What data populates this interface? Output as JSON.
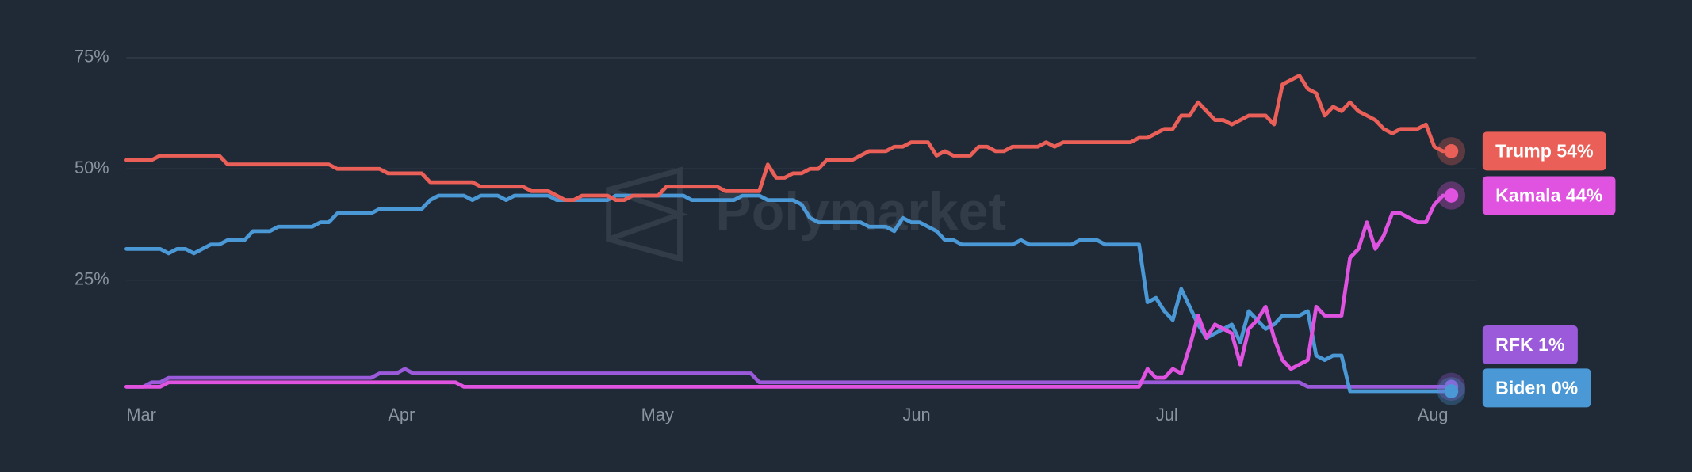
{
  "chart_data": {
    "type": "line",
    "watermark": "Polymarket",
    "categories": [
      "Mar",
      null,
      null,
      null,
      null,
      null,
      null,
      null,
      null,
      null,
      null,
      null,
      null,
      null,
      null,
      null,
      null,
      null,
      null,
      null,
      null,
      null,
      null,
      null,
      null,
      null,
      null,
      null,
      null,
      null,
      null,
      "Apr",
      null,
      null,
      null,
      null,
      null,
      null,
      null,
      null,
      null,
      null,
      null,
      null,
      null,
      null,
      null,
      null,
      null,
      null,
      null,
      null,
      null,
      null,
      null,
      null,
      null,
      null,
      null,
      null,
      null,
      "May",
      null,
      null,
      null,
      null,
      null,
      null,
      null,
      null,
      null,
      null,
      null,
      null,
      null,
      null,
      null,
      null,
      null,
      null,
      null,
      null,
      null,
      null,
      null,
      null,
      null,
      null,
      null,
      null,
      null,
      null,
      "Jun",
      null,
      null,
      null,
      null,
      null,
      null,
      null,
      null,
      null,
      null,
      null,
      null,
      null,
      null,
      null,
      null,
      null,
      null,
      null,
      null,
      null,
      null,
      null,
      null,
      null,
      null,
      null,
      null,
      null,
      "Jul",
      null,
      null,
      null,
      null,
      null,
      null,
      null,
      null,
      null,
      null,
      null,
      null,
      null,
      null,
      null,
      null,
      null,
      null,
      null,
      null,
      null,
      null,
      null,
      null,
      null,
      null,
      null,
      null,
      null,
      null,
      "Aug",
      null,
      null,
      null,
      null
    ],
    "ylim": [
      0,
      80
    ],
    "yticks": [
      {
        "value": 25,
        "label": "25%"
      },
      {
        "value": 50,
        "label": "50%"
      },
      {
        "value": 75,
        "label": "75%"
      }
    ],
    "grid": true,
    "series": [
      {
        "name": "Trump",
        "label": "Trump 54%",
        "color": "#ea5f57",
        "values": [
          52,
          52,
          52,
          52,
          53,
          53,
          53,
          53,
          53,
          53,
          53,
          53,
          51,
          51,
          51,
          51,
          51,
          51,
          51,
          51,
          51,
          51,
          51,
          51,
          51,
          50,
          50,
          50,
          50,
          50,
          50,
          49,
          49,
          49,
          49,
          49,
          47,
          47,
          47,
          47,
          47,
          47,
          46,
          46,
          46,
          46,
          46,
          46,
          45,
          45,
          45,
          44,
          43,
          43,
          44,
          44,
          44,
          44,
          43,
          43,
          44,
          44,
          44,
          44,
          46,
          46,
          46,
          46,
          46,
          46,
          46,
          45,
          45,
          45,
          45,
          45,
          51,
          48,
          48,
          49,
          49,
          50,
          50,
          52,
          52,
          52,
          52,
          53,
          54,
          54,
          54,
          55,
          55,
          56,
          56,
          56,
          53,
          54,
          53,
          53,
          53,
          55,
          55,
          54,
          54,
          55,
          55,
          55,
          55,
          56,
          55,
          56,
          56,
          56,
          56,
          56,
          56,
          56,
          56,
          56,
          57,
          57,
          58,
          59,
          59,
          62,
          62,
          65,
          63,
          61,
          61,
          60,
          61,
          62,
          62,
          62,
          60,
          69,
          70,
          71,
          68,
          67,
          62,
          64,
          63,
          65,
          63,
          62,
          61,
          59,
          58,
          59,
          59,
          59,
          60,
          55,
          54,
          54
        ]
      },
      {
        "name": "Kamala",
        "label": "Kamala 44%",
        "color": "#e052e0",
        "values": [
          1,
          1,
          1,
          1,
          1,
          2,
          2,
          2,
          2,
          2,
          2,
          2,
          2,
          2,
          2,
          2,
          2,
          2,
          2,
          2,
          2,
          2,
          2,
          2,
          2,
          2,
          2,
          2,
          2,
          2,
          2,
          2,
          2,
          2,
          2,
          2,
          2,
          2,
          2,
          2,
          1,
          1,
          1,
          1,
          1,
          1,
          1,
          1,
          1,
          1,
          1,
          1,
          1,
          1,
          1,
          1,
          1,
          1,
          1,
          1,
          1,
          1,
          1,
          1,
          1,
          1,
          1,
          1,
          1,
          1,
          1,
          1,
          1,
          1,
          1,
          1,
          1,
          1,
          1,
          1,
          1,
          1,
          1,
          1,
          1,
          1,
          1,
          1,
          1,
          1,
          1,
          1,
          1,
          1,
          1,
          1,
          1,
          1,
          1,
          1,
          1,
          1,
          1,
          1,
          1,
          1,
          1,
          1,
          1,
          1,
          1,
          1,
          1,
          1,
          1,
          1,
          1,
          1,
          1,
          1,
          1,
          5,
          3,
          3,
          5,
          4,
          10,
          17,
          12,
          15,
          14,
          13,
          6,
          14,
          16,
          19,
          12,
          7,
          5,
          6,
          7,
          19,
          17,
          17,
          17,
          30,
          32,
          38,
          32,
          35,
          40,
          40,
          39,
          38,
          38,
          42,
          44,
          44
        ]
      },
      {
        "name": "RFK",
        "label": "RFK 1%",
        "color": "#9a5ada",
        "values": [
          1,
          1,
          1,
          2,
          2,
          3,
          3,
          3,
          3,
          3,
          3,
          3,
          3,
          3,
          3,
          3,
          3,
          3,
          3,
          3,
          3,
          3,
          3,
          3,
          3,
          3,
          3,
          3,
          3,
          3,
          4,
          4,
          4,
          5,
          4,
          4,
          4,
          4,
          4,
          4,
          4,
          4,
          4,
          4,
          4,
          4,
          4,
          4,
          4,
          4,
          4,
          4,
          4,
          4,
          4,
          4,
          4,
          4,
          4,
          4,
          4,
          4,
          4,
          4,
          4,
          4,
          4,
          4,
          4,
          4,
          4,
          4,
          4,
          4,
          4,
          2,
          2,
          2,
          2,
          2,
          2,
          2,
          2,
          2,
          2,
          2,
          2,
          2,
          2,
          2,
          2,
          2,
          2,
          2,
          2,
          2,
          2,
          2,
          2,
          2,
          2,
          2,
          2,
          2,
          2,
          2,
          2,
          2,
          2,
          2,
          2,
          2,
          2,
          2,
          2,
          2,
          2,
          2,
          2,
          2,
          2,
          2,
          2,
          2,
          2,
          2,
          2,
          2,
          2,
          2,
          2,
          2,
          2,
          2,
          2,
          2,
          2,
          2,
          2,
          2,
          1,
          1,
          1,
          1,
          1,
          1,
          1,
          1,
          1,
          1,
          1,
          1,
          1,
          1,
          1,
          1,
          1,
          1
        ]
      },
      {
        "name": "Biden",
        "label": "Biden 0%",
        "color": "#4a98d6",
        "values": [
          32,
          32,
          32,
          32,
          32,
          31,
          32,
          32,
          31,
          32,
          33,
          33,
          34,
          34,
          34,
          36,
          36,
          36,
          37,
          37,
          37,
          37,
          37,
          38,
          38,
          40,
          40,
          40,
          40,
          40,
          41,
          41,
          41,
          41,
          41,
          41,
          43,
          44,
          44,
          44,
          44,
          43,
          44,
          44,
          44,
          43,
          44,
          44,
          44,
          44,
          44,
          43,
          43,
          43,
          43,
          43,
          43,
          43,
          44,
          44,
          44,
          44,
          44,
          44,
          44,
          44,
          44,
          43,
          43,
          43,
          43,
          43,
          43,
          44,
          44,
          44,
          43,
          43,
          43,
          43,
          42,
          39,
          38,
          38,
          38,
          38,
          38,
          38,
          37,
          37,
          37,
          36,
          39,
          38,
          38,
          37,
          36,
          34,
          34,
          33,
          33,
          33,
          33,
          33,
          33,
          33,
          34,
          33,
          33,
          33,
          33,
          33,
          33,
          34,
          34,
          34,
          33,
          33,
          33,
          33,
          33,
          20,
          21,
          18,
          16,
          23,
          19,
          15,
          12,
          13,
          14,
          15,
          11,
          18,
          16,
          14,
          15,
          17,
          17,
          17,
          18,
          8,
          7,
          8,
          8,
          0,
          0,
          0,
          0,
          0,
          0,
          0,
          0,
          0,
          0,
          0,
          0,
          0
        ]
      }
    ]
  }
}
